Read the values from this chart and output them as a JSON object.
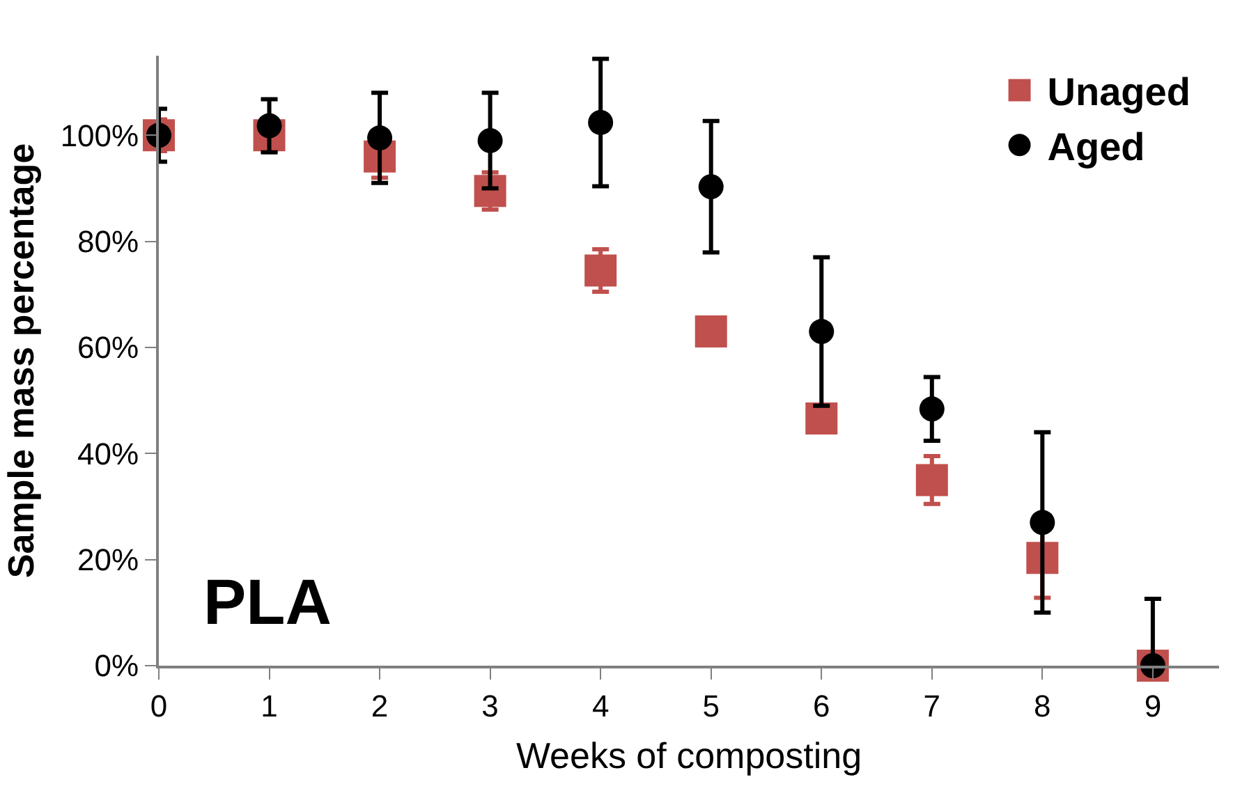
{
  "chart_data": {
    "type": "scatter",
    "xlabel": "Weeks of composting",
    "ylabel": "Sample mass percentage",
    "x": [
      0,
      1,
      2,
      3,
      4,
      5,
      6,
      7,
      8,
      9
    ],
    "series": [
      {
        "name": "Unaged",
        "color": "#c0504d",
        "marker": "square",
        "values": [
          100,
          100,
          96,
          89.5,
          74.5,
          63,
          46.6,
          35,
          20.3,
          0
        ],
        "errors": [
          3,
          3,
          4,
          3.5,
          4,
          null,
          null,
          4.5,
          7.5,
          null
        ]
      },
      {
        "name": "Aged",
        "color": "#000000",
        "marker": "circle",
        "values": [
          100,
          101.8,
          99.5,
          99,
          102.4,
          90.3,
          63,
          48.4,
          27,
          0
        ],
        "errors": [
          5,
          5,
          8.5,
          9,
          12,
          12.4,
          14,
          6,
          17,
          [
            0,
            12.6
          ]
        ]
      }
    ],
    "xlim": [
      0,
      9.6
    ],
    "ylim": [
      0,
      115
    ],
    "xticks": [
      0,
      1,
      2,
      3,
      4,
      5,
      6,
      7,
      8,
      9
    ],
    "yticks": [
      {
        "value": 0,
        "label": "0%"
      },
      {
        "value": 20,
        "label": "20%"
      },
      {
        "value": 40,
        "label": "40%"
      },
      {
        "value": 60,
        "label": "60%"
      },
      {
        "value": 80,
        "label": "80%"
      },
      {
        "value": 100,
        "label": "100%"
      }
    ],
    "annotations": [
      "PLA"
    ],
    "legend": "top right"
  }
}
